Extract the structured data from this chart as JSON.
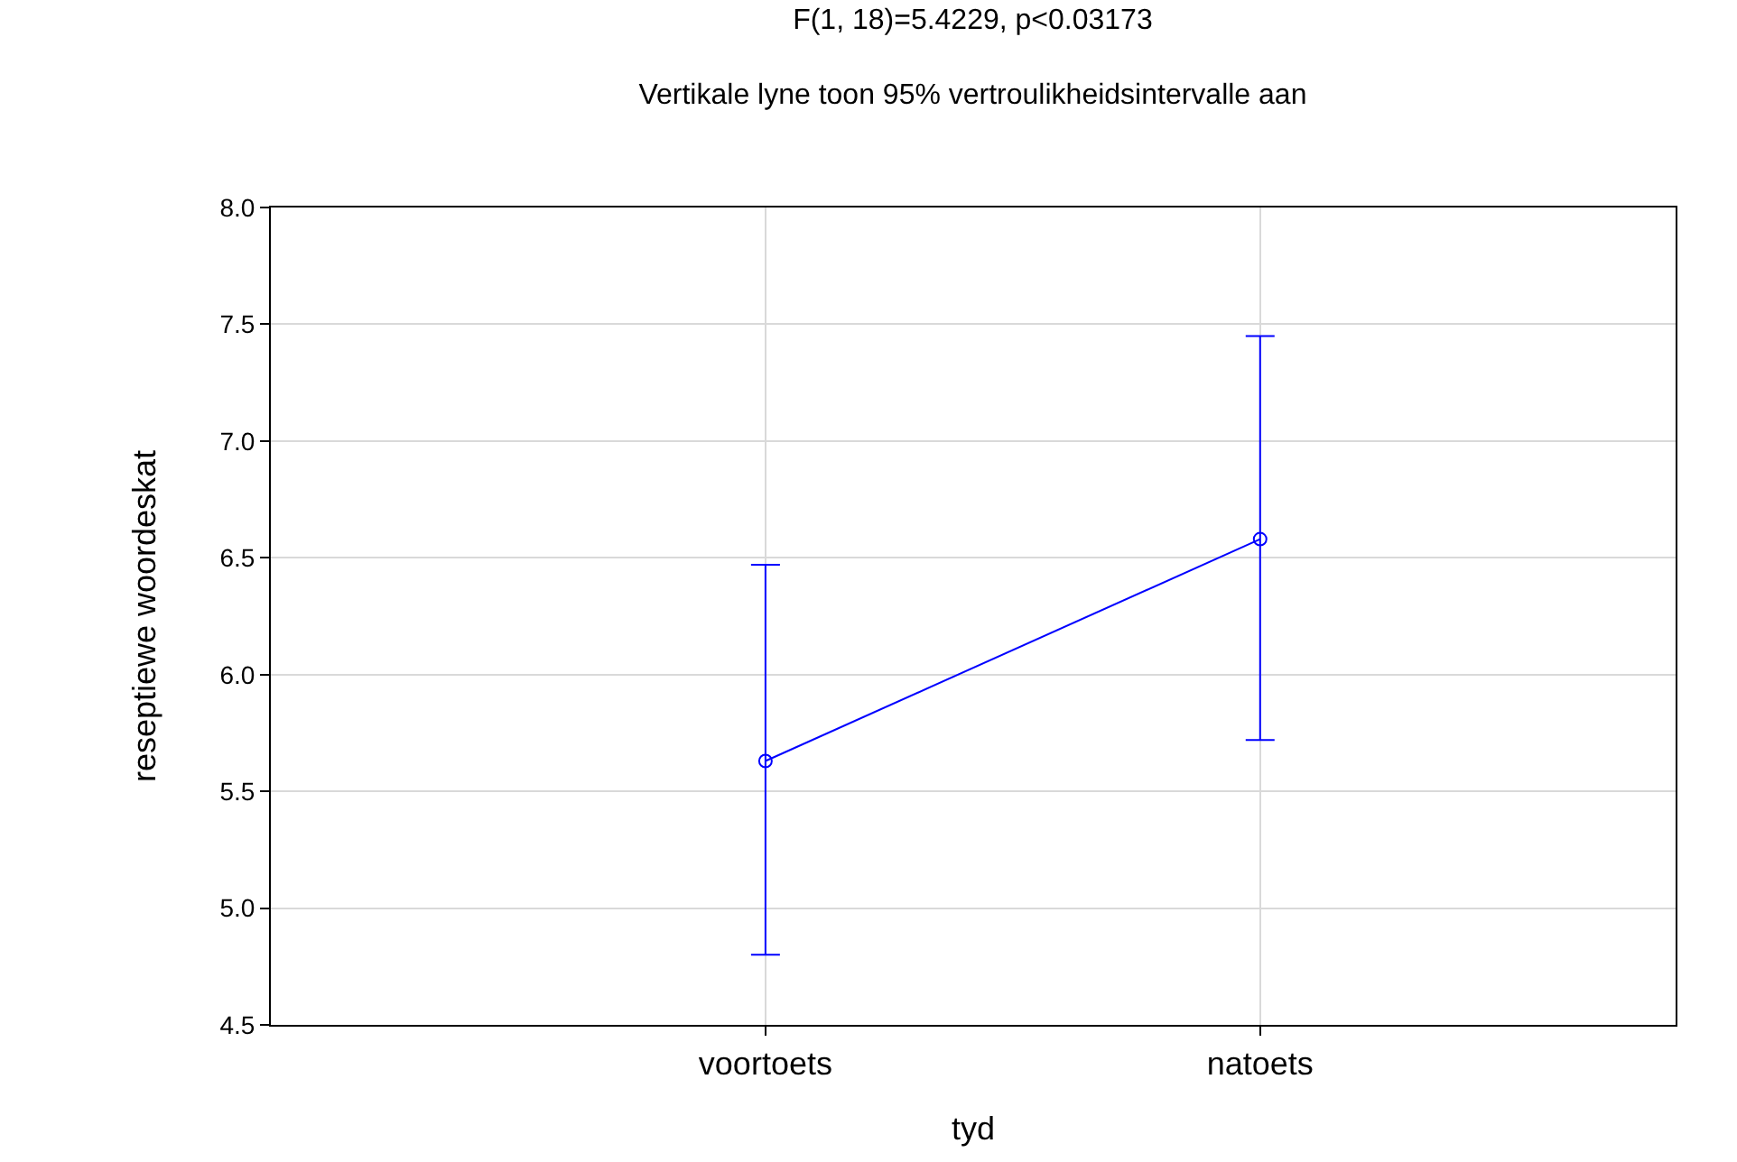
{
  "chart_data": {
    "type": "line",
    "title": "F(1, 18)=5.4229, p<0.03173",
    "subtitle": "Vertikale lyne toon 95% vertroulikheidsintervalle aan",
    "xlabel": "tyd",
    "ylabel": "reseptiewe woordeskat",
    "categories": [
      "voortoets",
      "natoets"
    ],
    "series": [
      {
        "color": "#0000ff",
        "values": [
          5.63,
          6.58
        ],
        "errors": [
          [
            4.8,
            6.47
          ],
          [
            5.72,
            7.45
          ]
        ]
      }
    ],
    "ylim": [
      4.5,
      8.0
    ],
    "yticks": [
      {
        "value": 4.5,
        "label": "4.5"
      },
      {
        "value": 5.0,
        "label": "5.0"
      },
      {
        "value": 5.5,
        "label": "5.5"
      },
      {
        "value": 6.0,
        "label": "6.0"
      },
      {
        "value": 6.5,
        "label": "6.5"
      },
      {
        "value": 7.0,
        "label": "7.0"
      },
      {
        "value": 7.5,
        "label": "7.5"
      },
      {
        "value": 8.0,
        "label": "8.0"
      }
    ],
    "grid": true,
    "marker": "circle",
    "line_style": "solid"
  }
}
